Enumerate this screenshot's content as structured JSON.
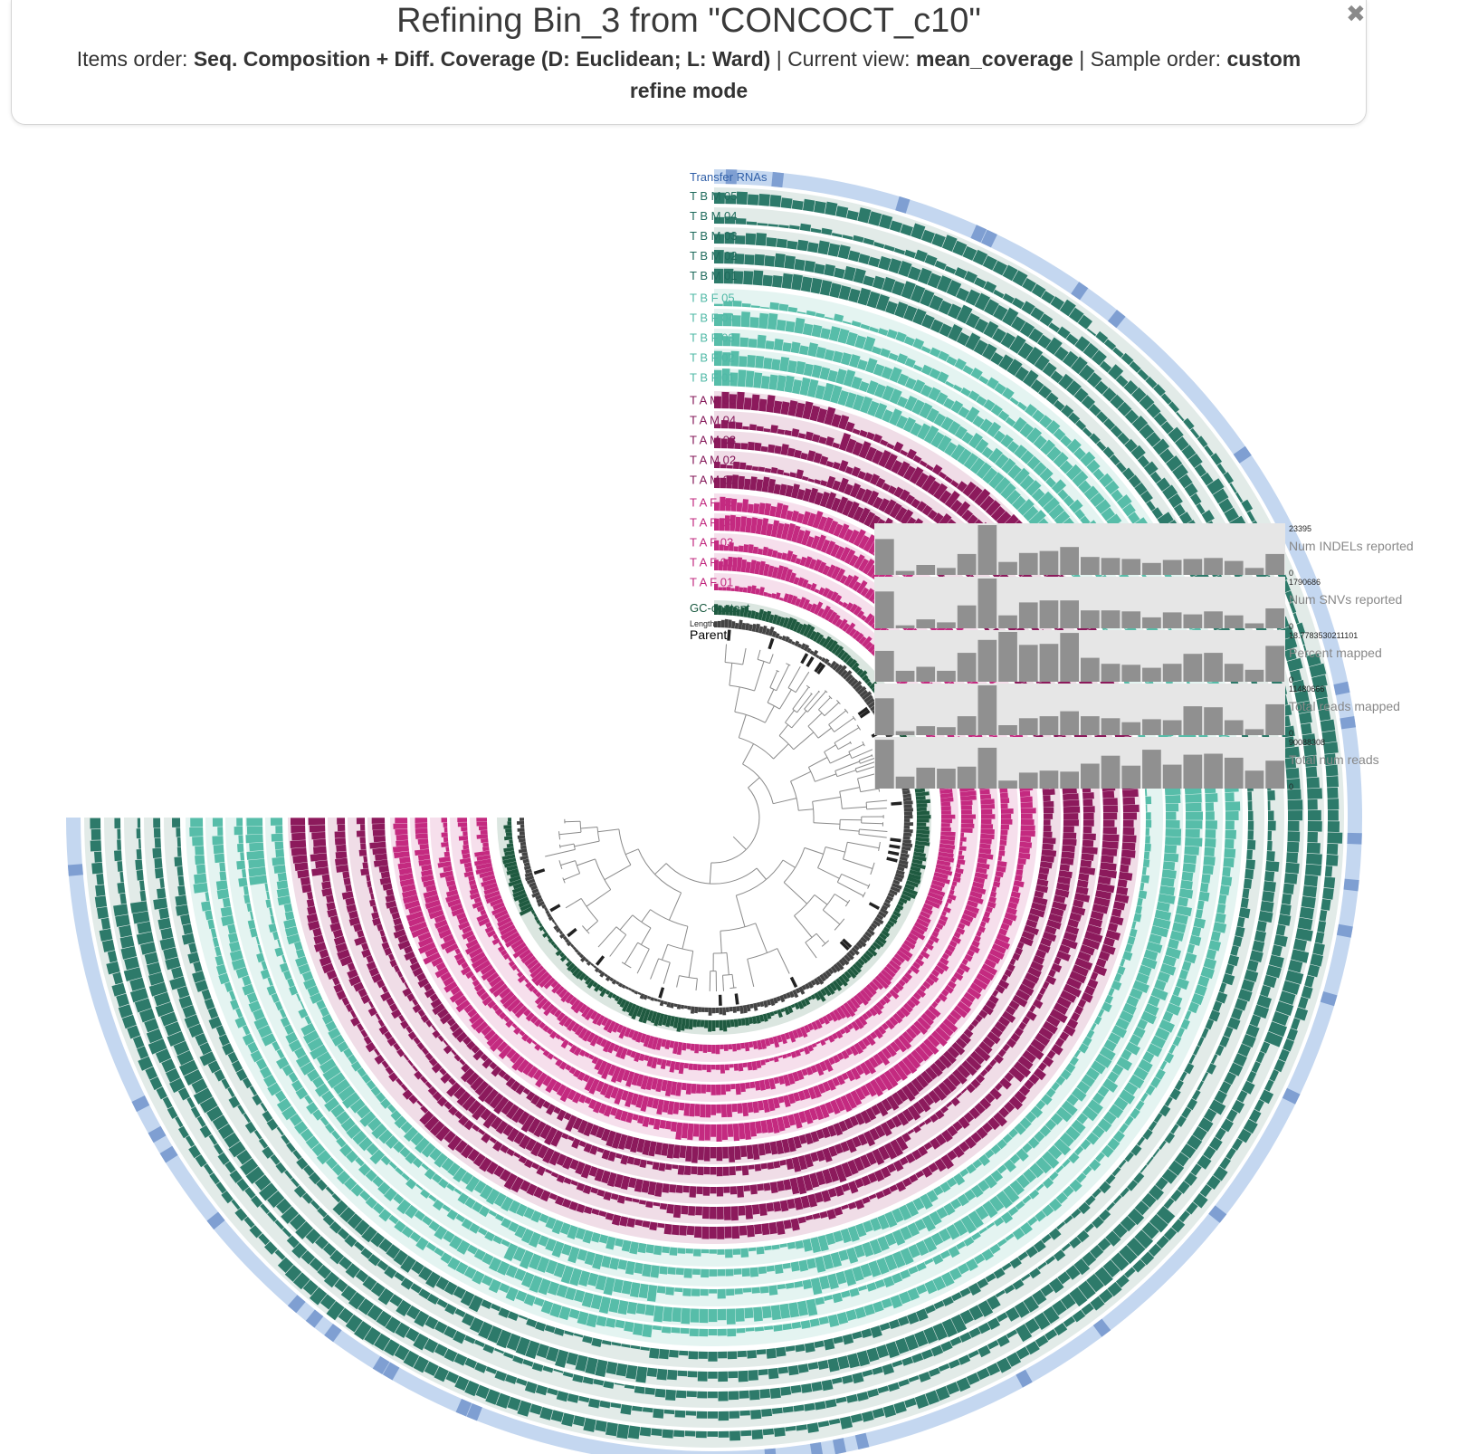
{
  "header": {
    "title": "Refining Bin_3 from \"CONCOCT_c10\"",
    "items_order_label": "Items order:",
    "items_order_value": "Seq. Composition + Diff. Coverage (D: Euclidean; L: Ward)",
    "separator": "|",
    "current_view_label": "Current view:",
    "current_view_value": "mean_coverage",
    "sample_order_label": "Sample order:",
    "sample_order_value": "custom",
    "mode_value": "refine mode",
    "close_glyph": "✖"
  },
  "layers": [
    {
      "label": "Transfer RNAs",
      "color": "#2f5fa8",
      "bg": "#c4d7f0",
      "bar": "#7f9fd2",
      "type": "sparse"
    },
    {
      "label": "T B M 05",
      "color": "#1f6b5c",
      "bg": "#e2ebe8",
      "bar": "#2d7a6a",
      "type": "bar"
    },
    {
      "label": "T B M 04",
      "color": "#1f6b5c",
      "bg": "#e2ebe8",
      "bar": "#2d7a6a",
      "type": "bar"
    },
    {
      "label": "T B M 03",
      "color": "#1f6b5c",
      "bg": "#e2ebe8",
      "bar": "#2d7a6a",
      "type": "bar"
    },
    {
      "label": "T B M 02",
      "color": "#1f6b5c",
      "bg": "#e2ebe8",
      "bar": "#2d7a6a",
      "type": "bar"
    },
    {
      "label": "T B M 01",
      "color": "#1f6b5c",
      "bg": "#e2ebe8",
      "bar": "#2d7a6a",
      "type": "bar"
    },
    {
      "label": "T B F 05",
      "color": "#4fb8a6",
      "bg": "#e4f4f1",
      "bar": "#57bda9",
      "type": "bar"
    },
    {
      "label": "T B F 04",
      "color": "#4fb8a6",
      "bg": "#e4f4f1",
      "bar": "#57bda9",
      "type": "bar"
    },
    {
      "label": "T B F 03",
      "color": "#4fb8a6",
      "bg": "#e4f4f1",
      "bar": "#57bda9",
      "type": "bar"
    },
    {
      "label": "T B F 02",
      "color": "#4fb8a6",
      "bg": "#e4f4f1",
      "bar": "#57bda9",
      "type": "bar"
    },
    {
      "label": "T B F 01",
      "color": "#4fb8a6",
      "bg": "#e4f4f1",
      "bar": "#57bda9",
      "type": "bar"
    },
    {
      "label": "T A M 05",
      "color": "#85195a",
      "bg": "#f0dde7",
      "bar": "#8c1a5c",
      "type": "bar"
    },
    {
      "label": "T A M 04",
      "color": "#85195a",
      "bg": "#f0dde7",
      "bar": "#8c1a5c",
      "type": "bar"
    },
    {
      "label": "T A M 03",
      "color": "#85195a",
      "bg": "#f0dde7",
      "bar": "#8c1a5c",
      "type": "bar"
    },
    {
      "label": "T A M 02",
      "color": "#85195a",
      "bg": "#f0dde7",
      "bar": "#8c1a5c",
      "type": "bar"
    },
    {
      "label": "T A M 01",
      "color": "#85195a",
      "bg": "#f0dde7",
      "bar": "#8c1a5c",
      "type": "bar"
    },
    {
      "label": "T A F 05",
      "color": "#c2297f",
      "bg": "#f6dfec",
      "bar": "#c42a80",
      "type": "bar"
    },
    {
      "label": "T A F 04",
      "color": "#c2297f",
      "bg": "#f6dfec",
      "bar": "#c42a80",
      "type": "bar"
    },
    {
      "label": "T A F 03",
      "color": "#c2297f",
      "bg": "#f6dfec",
      "bar": "#c42a80",
      "type": "bar"
    },
    {
      "label": "T A F 02",
      "color": "#c2297f",
      "bg": "#f6dfec",
      "bar": "#c42a80",
      "type": "bar"
    },
    {
      "label": "T A F 01",
      "color": "#c2297f",
      "bg": "#f6dfec",
      "bar": "#c42a80",
      "type": "bar"
    },
    {
      "label": "GC-content",
      "color": "#1a5a40",
      "bg": "#dbe6e0",
      "bar": "#1f5a40",
      "type": "bar"
    },
    {
      "label": "Length",
      "color": "#222222",
      "bg": "#ffffff",
      "bar": "#444444",
      "type": "bar"
    },
    {
      "label": "Parent",
      "color": "#000000",
      "bg": "#ffffff",
      "bar": "#222222",
      "type": "sparse"
    }
  ],
  "sample_bars": [
    {
      "name": "Num INDELs reported",
      "max_label": "23395",
      "min_label": "0",
      "values": [
        0.72,
        0.08,
        0.2,
        0.14,
        0.42,
        1.0,
        0.26,
        0.44,
        0.48,
        0.56,
        0.36,
        0.34,
        0.32,
        0.24,
        0.3,
        0.32,
        0.34,
        0.28,
        0.14,
        0.42
      ]
    },
    {
      "name": "Num SNVs reported",
      "max_label": "1790686",
      "min_label": "0",
      "values": [
        0.74,
        0.06,
        0.18,
        0.12,
        0.46,
        1.0,
        0.26,
        0.52,
        0.56,
        0.56,
        0.36,
        0.36,
        0.34,
        0.22,
        0.32,
        0.28,
        0.34,
        0.26,
        0.1,
        0.4
      ]
    },
    {
      "name": "Percent mapped",
      "max_label": "18.7783530211101",
      "min_label": "0",
      "values": [
        0.62,
        0.22,
        0.3,
        0.22,
        0.58,
        0.84,
        1.0,
        0.74,
        0.76,
        0.98,
        0.48,
        0.36,
        0.34,
        0.28,
        0.36,
        0.56,
        0.58,
        0.36,
        0.24,
        0.72
      ]
    },
    {
      "name": "Total reads mapped",
      "max_label": "11480666",
      "min_label": "0",
      "values": [
        0.74,
        0.08,
        0.18,
        0.16,
        0.38,
        1.0,
        0.2,
        0.34,
        0.38,
        0.48,
        0.38,
        0.34,
        0.26,
        0.32,
        0.3,
        0.58,
        0.56,
        0.3,
        0.12,
        0.62
      ]
    },
    {
      "name": "Total num reads",
      "max_label": "90088308",
      "min_label": "0",
      "values": [
        0.98,
        0.24,
        0.42,
        0.4,
        0.44,
        0.82,
        0.16,
        0.32,
        0.36,
        0.34,
        0.5,
        0.66,
        0.46,
        0.78,
        0.48,
        0.68,
        0.7,
        0.62,
        0.36,
        0.56
      ]
    }
  ],
  "icons": {
    "close": "close-icon"
  }
}
